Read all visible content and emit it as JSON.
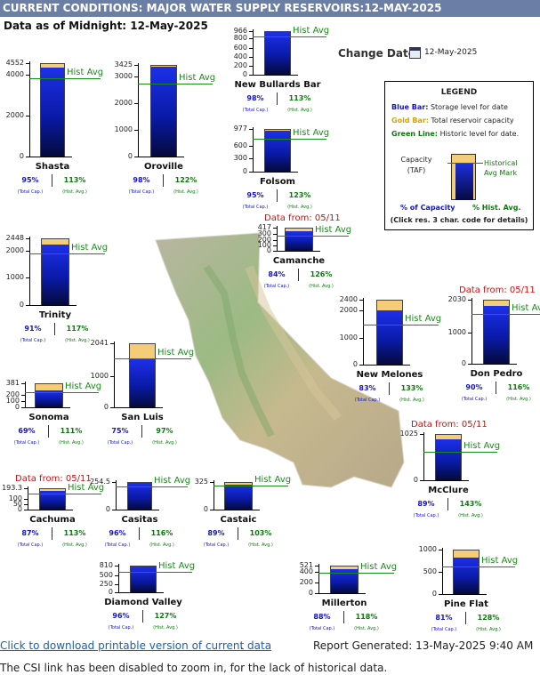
{
  "header": {
    "title": "CURRENT CONDITIONS: MAJOR WATER SUPPLY RESERVOIRS:12-MAY-2025"
  },
  "as_of": "Data as of Midnight: 12-May-2025",
  "change_date": {
    "label": "Change Date:",
    "value": "12-May-2025",
    "icon": "calendar-icon"
  },
  "legend": {
    "title": "LEGEND",
    "blue_key": "Blue Bar:",
    "blue_text": "Storage level for date",
    "gold_key": "Gold Bar:",
    "gold_text": "Total reservoir capacity",
    "green_key": "Green Line:",
    "green_text": "Historic level for date.",
    "capacity_label": "Capacity",
    "taf_label": "(TAF)",
    "historical_label": "Historical",
    "avg_mark_label": "Avg Mark",
    "pct_capacity": "% of Capacity",
    "pct_hist": "% Hist. Avg.",
    "click_note": "(Click res. 3 char. code for details)"
  },
  "labels": {
    "hist_avg": "Hist Avg",
    "total_cap": "(Total Cap.)",
    "hist_avg_small": "(Hist. Avg.)"
  },
  "reservoirs": [
    {
      "name": "Shasta",
      "capacity": 4552,
      "ticks": [
        "4552",
        "4000",
        "2000",
        "0"
      ],
      "pct_capacity": "95%",
      "pct_hist": "113%",
      "storage_frac": 0.95,
      "hist_frac": 0.84,
      "data_from": ""
    },
    {
      "name": "Oroville",
      "capacity": 3425,
      "ticks": [
        "3425",
        "3000",
        "2000",
        "1000",
        "0"
      ],
      "pct_capacity": "98%",
      "pct_hist": "122%",
      "storage_frac": 0.98,
      "hist_frac": 0.8,
      "data_from": ""
    },
    {
      "name": "New Bullards Bar",
      "capacity": 966,
      "ticks": [
        "966",
        "800",
        "600",
        "400",
        "200",
        "0"
      ],
      "pct_capacity": "98%",
      "pct_hist": "113%",
      "storage_frac": 0.98,
      "hist_frac": 0.87,
      "data_from": ""
    },
    {
      "name": "Folsom",
      "capacity": 977,
      "ticks": [
        "977",
        "600",
        "300",
        "0"
      ],
      "pct_capacity": "95%",
      "pct_hist": "123%",
      "storage_frac": 0.95,
      "hist_frac": 0.77,
      "data_from": ""
    },
    {
      "name": "Trinity",
      "capacity": 2448,
      "ticks": [
        "2448",
        "2000",
        "1000",
        "0"
      ],
      "pct_capacity": "91%",
      "pct_hist": "117%",
      "storage_frac": 0.91,
      "hist_frac": 0.78,
      "data_from": ""
    },
    {
      "name": "Camanche",
      "capacity": 417,
      "ticks": [
        "417",
        "300",
        "200",
        "100",
        "0"
      ],
      "pct_capacity": "84%",
      "pct_hist": "126%",
      "storage_frac": 0.84,
      "hist_frac": 0.67,
      "data_from": "Data from: 05/11"
    },
    {
      "name": "New Melones",
      "capacity": 2400,
      "ticks": [
        "2400",
        "2000",
        "1000",
        "0"
      ],
      "pct_capacity": "83%",
      "pct_hist": "133%",
      "storage_frac": 0.83,
      "hist_frac": 0.62,
      "data_from": ""
    },
    {
      "name": "Don Pedro",
      "capacity": 2030,
      "ticks": [
        "2030",
        "1000",
        "0"
      ],
      "pct_capacity": "90%",
      "pct_hist": "116%",
      "storage_frac": 0.9,
      "hist_frac": 0.78,
      "data_from": "Data from: 05/11"
    },
    {
      "name": "San Luis",
      "capacity": 2041,
      "ticks": [
        "2041",
        "1000",
        "0"
      ],
      "pct_capacity": "75%",
      "pct_hist": "97%",
      "storage_frac": 0.75,
      "hist_frac": 0.77,
      "data_from": ""
    },
    {
      "name": "Sonoma",
      "capacity": 381,
      "ticks": [
        "381",
        "200",
        "100",
        "0"
      ],
      "pct_capacity": "69%",
      "pct_hist": "111%",
      "storage_frac": 0.69,
      "hist_frac": 0.62,
      "data_from": ""
    },
    {
      "name": "McClure",
      "capacity": 1025,
      "ticks": [
        "1025",
        "0"
      ],
      "pct_capacity": "89%",
      "pct_hist": "143%",
      "storage_frac": 0.89,
      "hist_frac": 0.62,
      "data_from": "Data from: 05/11"
    },
    {
      "name": "Cachuma",
      "capacity": 193.3,
      "ticks": [
        "193.3",
        "100",
        "50",
        "0"
      ],
      "pct_capacity": "87%",
      "pct_hist": "113%",
      "storage_frac": 0.87,
      "hist_frac": 0.77,
      "data_from": "Data from: 05/11"
    },
    {
      "name": "Casitas",
      "capacity": 254.5,
      "ticks": [
        "254.5",
        "0"
      ],
      "pct_capacity": "96%",
      "pct_hist": "116%",
      "storage_frac": 0.96,
      "hist_frac": 0.83,
      "data_from": ""
    },
    {
      "name": "Castaic",
      "capacity": 325,
      "ticks": [
        "325",
        "0"
      ],
      "pct_capacity": "89%",
      "pct_hist": "103%",
      "storage_frac": 0.89,
      "hist_frac": 0.86,
      "data_from": ""
    },
    {
      "name": "Diamond Valley",
      "capacity": 810,
      "ticks": [
        "810",
        "500",
        "250",
        "0"
      ],
      "pct_capacity": "96%",
      "pct_hist": "127%",
      "storage_frac": 0.96,
      "hist_frac": 0.76,
      "data_from": ""
    },
    {
      "name": "Millerton",
      "capacity": 521,
      "ticks": [
        "521",
        "400",
        "200",
        "0"
      ],
      "pct_capacity": "88%",
      "pct_hist": "118%",
      "storage_frac": 0.88,
      "hist_frac": 0.75,
      "data_from": ""
    },
    {
      "name": "Pine Flat",
      "capacity": 1000,
      "ticks": [
        "1000",
        "500",
        "0"
      ],
      "pct_capacity": "81%",
      "pct_hist": "128%",
      "storage_frac": 0.81,
      "hist_frac": 0.63,
      "data_from": ""
    }
  ],
  "footer": {
    "download_link": "Click to download printable version of current data",
    "link_period": ".",
    "report": "Report Generated: 13-May-2025 9:40 AM",
    "csi_note": "The CSI link has been disabled to zoom in, for the lack of historical data."
  }
}
